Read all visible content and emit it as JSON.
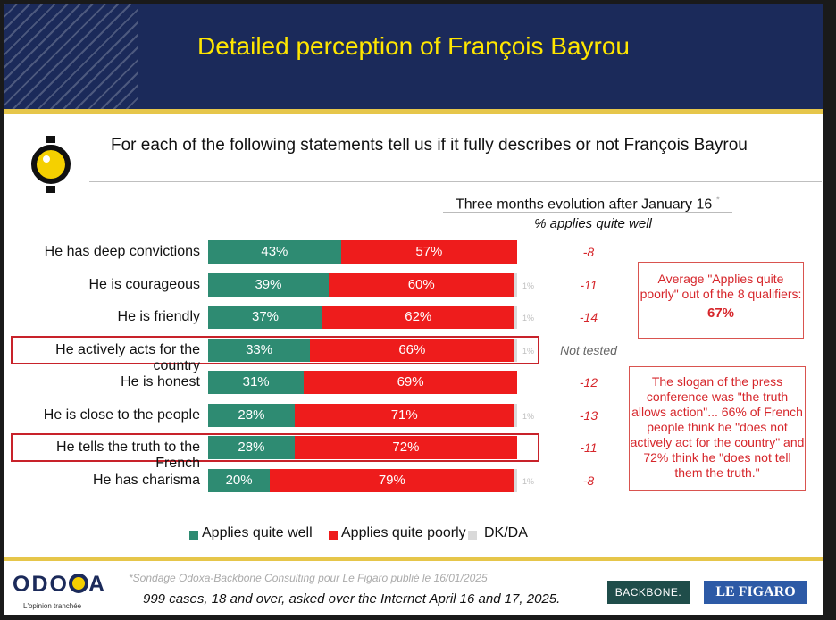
{
  "header": {
    "title": "Detailed perception of François Bayrou"
  },
  "question": "For each of the following statements tell us if it fully describes or not François Bayrou",
  "evolution": {
    "heading": "Three months evolution after January 16",
    "star": "*",
    "subheading": "% applies quite well"
  },
  "chart_data": {
    "type": "bar",
    "orientation": "horizontal-stacked",
    "categories": [
      "He has deep convictions",
      "He is courageous",
      "He is friendly",
      "He actively acts for the country",
      "He is honest",
      "He is close to the people",
      "He tells the truth to the French",
      "He has charisma"
    ],
    "series": [
      {
        "name": "Applies quite well",
        "values": [
          43,
          39,
          37,
          33,
          31,
          28,
          28,
          20
        ],
        "color": "#2e8b72"
      },
      {
        "name": "Applies quite poorly",
        "values": [
          57,
          60,
          62,
          66,
          69,
          71,
          72,
          79
        ],
        "color": "#ee1c1c"
      },
      {
        "name": "DK/DA",
        "values": [
          0,
          1,
          1,
          1,
          0,
          1,
          0,
          1
        ],
        "color": "#d9d9d9"
      }
    ],
    "value_labels": {
      "well": [
        "43%",
        "39%",
        "37%",
        "33%",
        "31%",
        "28%",
        "28%",
        "20%"
      ],
      "poorly": [
        "57%",
        "60%",
        "62%",
        "66%",
        "69%",
        "71%",
        "72%",
        "79%"
      ],
      "dk": [
        "",
        "1%",
        "1%",
        "1%",
        "",
        "1%",
        "",
        "1%"
      ]
    },
    "evolution": [
      "-8",
      "-11",
      "-14",
      "Not tested",
      "-12",
      "-13",
      "-11",
      "-8"
    ],
    "highlighted": [
      false,
      false,
      false,
      true,
      false,
      false,
      true,
      false
    ],
    "legend_position": "bottom"
  },
  "notes": {
    "average_text": "Average \"Applies quite poorly\" out of the 8 qualifiers:",
    "average_value": "67%",
    "slogan_text": "The slogan of the press conference was \"the truth allows action\"... 66% of French people think he \"does not actively act for the country\" and 72% think he \"does not tell them the truth.\""
  },
  "footer": {
    "brand": "ODOXA",
    "tagline": "L'opinion tranchée",
    "source": "*Sondage Odoxa-Backbone Consulting pour Le Figaro publié le 16/01/2025",
    "cases": "999 cases, 18 and over, asked over the Internet April 16 and 17, 2025.",
    "partner1": "BACKBONE.",
    "partner2": "LE FIGARO"
  },
  "colors": {
    "header_bg": "#1b2a5a",
    "title": "#ffe600",
    "accent_gold": "#e6c64a",
    "highlight": "#c8222a"
  }
}
